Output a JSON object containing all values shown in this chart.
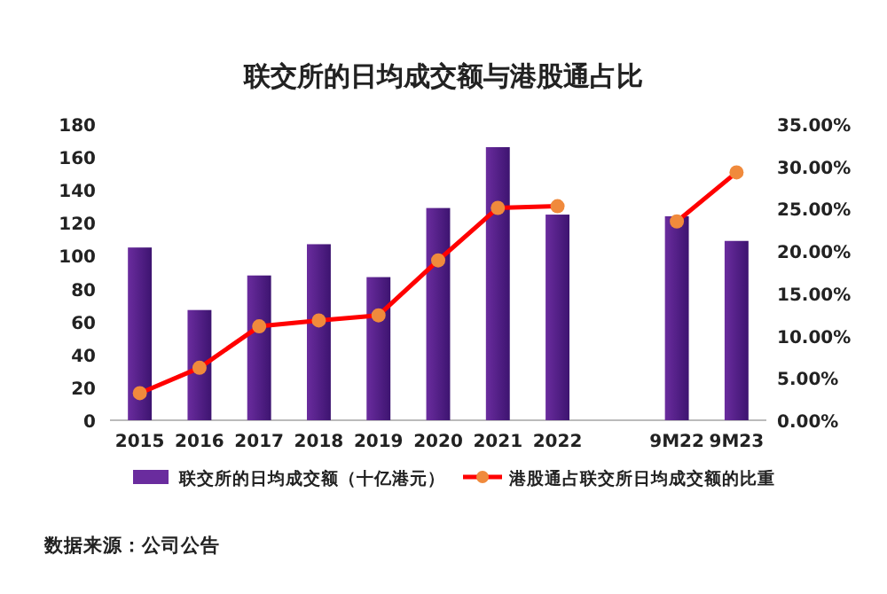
{
  "chart_data": {
    "type": "bar",
    "title": "联交所的日均成交额与港股通占比",
    "categories": [
      "2015",
      "2016",
      "2017",
      "2018",
      "2019",
      "2020",
      "2021",
      "2022",
      null,
      "9M22",
      "9M23"
    ],
    "series": [
      {
        "name": "联交所的日均成交额（十亿港元）",
        "color": "#6a2c9e",
        "values": [
          105,
          67,
          88,
          107,
          87,
          129,
          166,
          125,
          null,
          124,
          109
        ]
      },
      {
        "name": "港股通占联交所日均成交额的比重",
        "type": "line",
        "axis": "y2",
        "color": "#ff0000",
        "colors": [
          "#f08a3c",
          "#f08a3c",
          "#f08a3c",
          "#f08a3c",
          "#f08a3c",
          "#f08a3c",
          "#f08a3c",
          "#f08a3c",
          null,
          "#f08a3c",
          "#f08a3c"
        ],
        "values": [
          3.2,
          6.2,
          11.1,
          11.8,
          12.4,
          18.9,
          25.1,
          25.3,
          null,
          23.5,
          29.3
        ]
      }
    ],
    "ylim": [
      0,
      180
    ],
    "yticks": [
      0,
      20,
      40,
      60,
      80,
      100,
      120,
      140,
      160,
      180
    ],
    "y2lim": [
      0,
      35
    ],
    "y2ticks": [
      {
        "value": 0,
        "label": "0.00%"
      },
      {
        "value": 5,
        "label": "5.00%"
      },
      {
        "value": 10,
        "label": "10.00%"
      },
      {
        "value": 15,
        "label": "15.00%"
      },
      {
        "value": 20,
        "label": "20.00%"
      },
      {
        "value": 25,
        "label": "25.00%"
      },
      {
        "value": 30,
        "label": "30.00%"
      },
      {
        "value": 35,
        "label": "35.00%"
      }
    ],
    "marker": "circle",
    "grid": false,
    "legend": "bottom",
    "annotations": [
      "数据来源：公司公告"
    ]
  }
}
